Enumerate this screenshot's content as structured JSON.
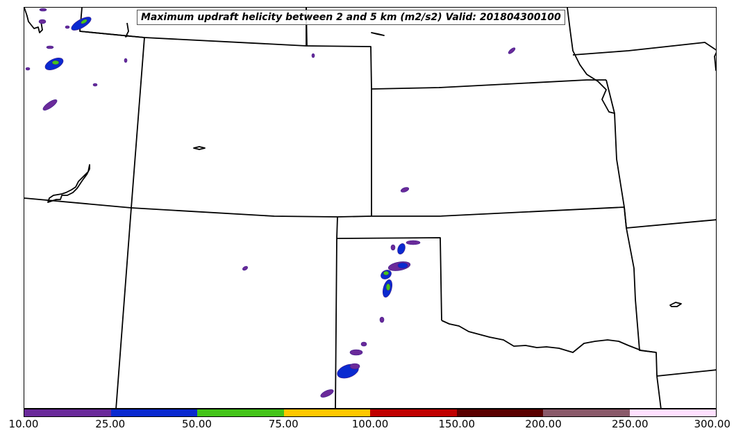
{
  "title": "Maximum updraft helicity between 2 and 5 km (m2/s2) Valid: 201804300100",
  "colors": {
    "levels": [
      "#6a2a9a",
      "#0a2ad0",
      "#44c41a",
      "#ffc800",
      "#c00000",
      "#5a0000",
      "#8a5a6a",
      "#ffe0ff"
    ],
    "border": "#000000"
  },
  "colorbar": {
    "tick_labels": [
      "10.00",
      "25.00",
      "50.00",
      "75.00",
      "100.00",
      "150.00",
      "200.00",
      "250.00",
      "300.00"
    ]
  }
}
